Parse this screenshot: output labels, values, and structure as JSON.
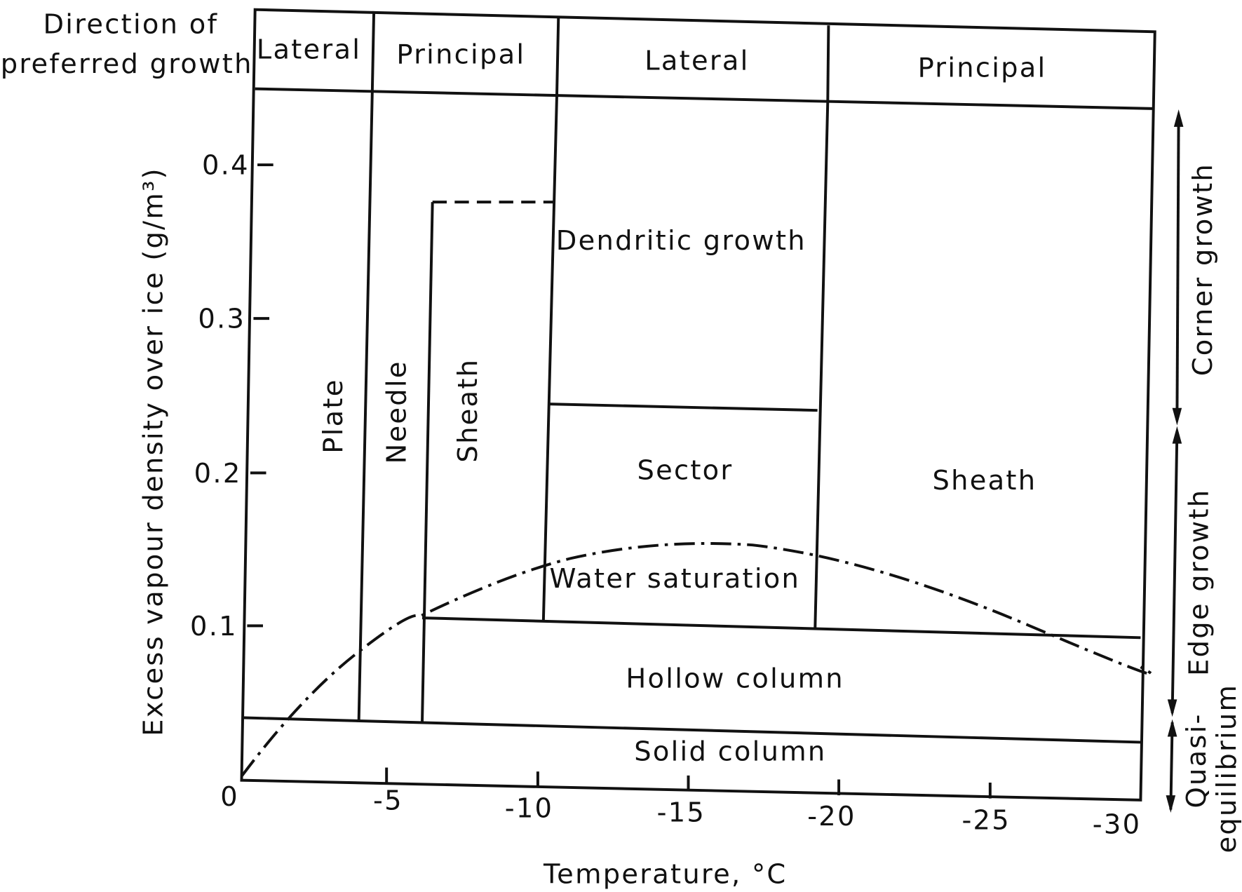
{
  "header": {
    "row_label": [
      "Direction of",
      "preferred growth"
    ],
    "cells": [
      "Lateral",
      "Principal",
      "Lateral",
      "Principal"
    ]
  },
  "y_axis": {
    "label": "Excess vapour density over ice (g/m³)",
    "ticks": [
      "0.4",
      "0.3",
      "0.2",
      "0.1",
      "0"
    ]
  },
  "x_axis": {
    "label": "Temperature, °C",
    "ticks": [
      "-5",
      "-10",
      "-15",
      "-20",
      "-25",
      "-30"
    ]
  },
  "regions": [
    "Plate",
    "Needle",
    "Sheath",
    "Dendritic growth",
    "Sector",
    "Water saturation",
    "Hollow column",
    "Solid column",
    "Sheath"
  ],
  "side_labels": [
    "Corner growth",
    "Edge growth",
    "Quasi-",
    "equilibrium"
  ]
}
